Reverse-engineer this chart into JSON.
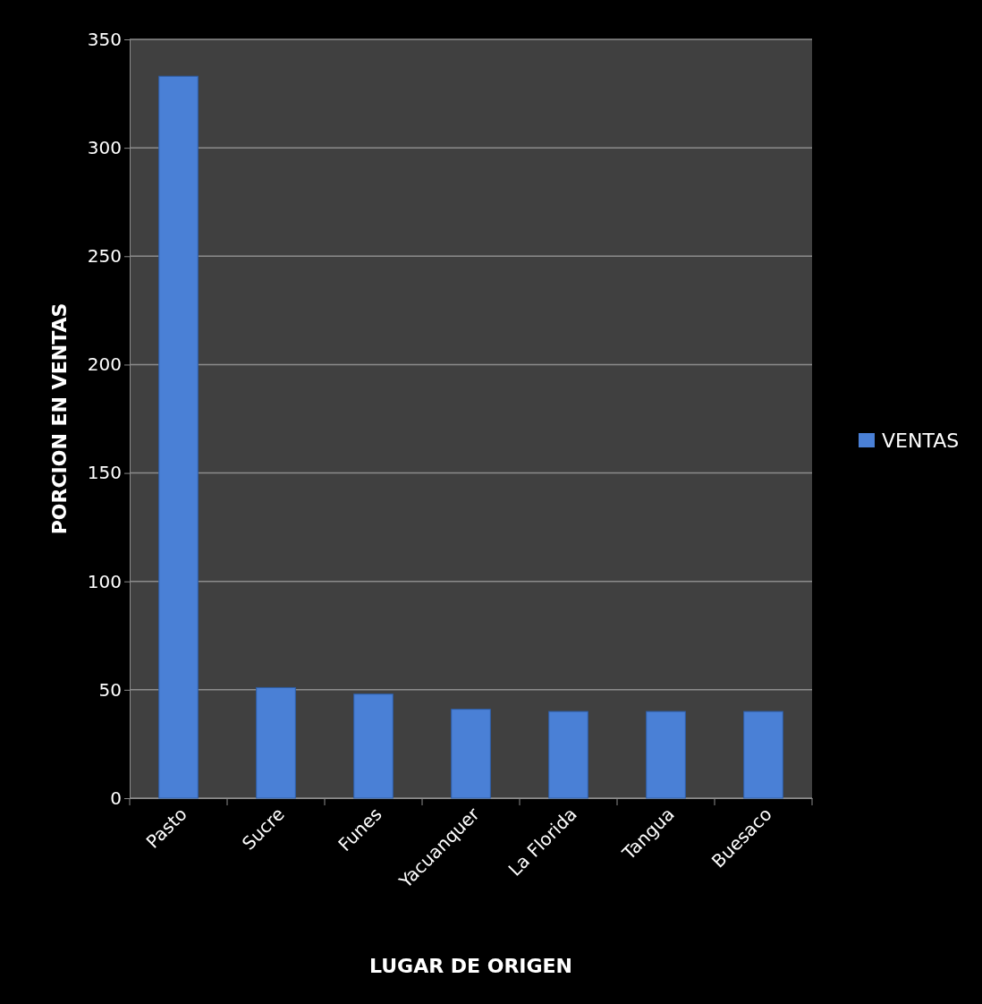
{
  "chart_data": {
    "type": "bar",
    "xlabel": "LUGAR DE ORIGEN",
    "ylabel": "PORCION EN VENTAS",
    "categories": [
      "Pasto",
      "Sucre",
      "Funes",
      "Yacuanquer",
      "La Florida",
      "Tangua",
      "Buesaco"
    ],
    "series": [
      {
        "name": "VENTAS",
        "color": "#4a80d6",
        "values": [
          333,
          51,
          48,
          41,
          40,
          40,
          40
        ]
      }
    ],
    "ylim": [
      0,
      350
    ],
    "yticks": [
      0,
      50,
      100,
      150,
      200,
      250,
      300,
      350
    ],
    "grid": "y",
    "legend": "right"
  }
}
